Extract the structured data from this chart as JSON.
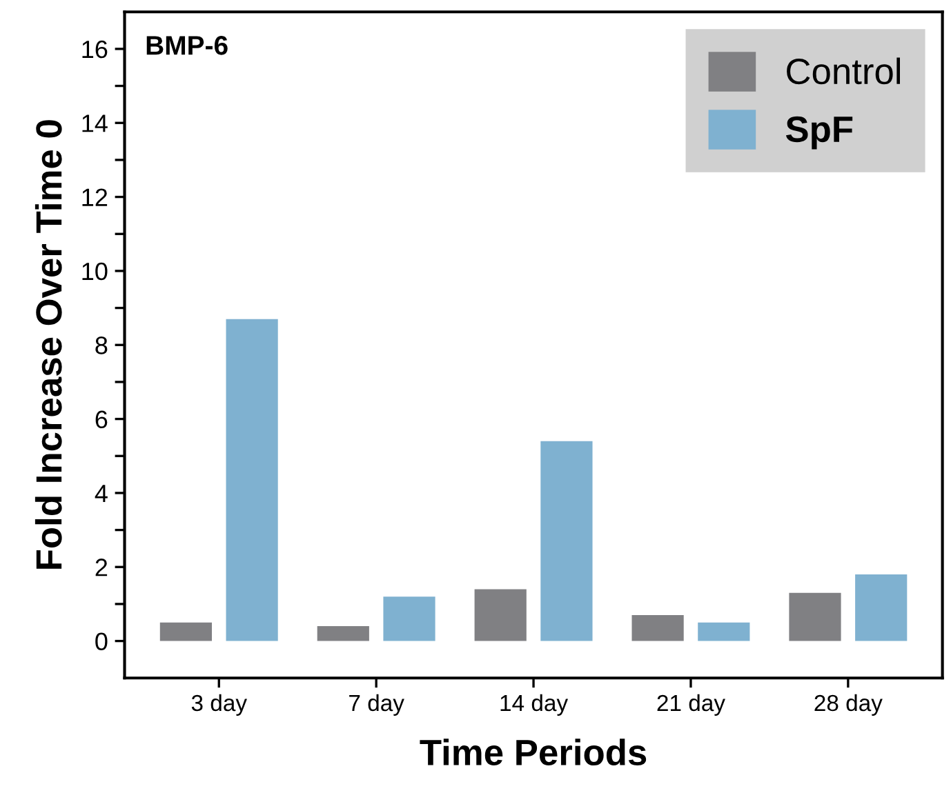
{
  "chart_data": {
    "type": "bar",
    "xlabel": "Time Periods",
    "ylabel": "Fold Increase Over Time 0",
    "annotations": [
      "BMP-6"
    ],
    "categories": [
      "3 day",
      "7 day",
      "14 day",
      "21 day",
      "28 day"
    ],
    "series": [
      {
        "name": "Control",
        "color": "#808083",
        "values": [
          0.5,
          0.4,
          1.4,
          0.7,
          1.3
        ]
      },
      {
        "name": "SpF",
        "color": "#7fb1d0",
        "values": [
          8.7,
          1.2,
          5.4,
          0.5,
          1.8
        ]
      }
    ],
    "ylim": [
      -1,
      17
    ],
    "yticks": [
      0,
      {
        "value": 1,
        "label": null
      },
      2,
      {
        "value": 3,
        "label": null
      },
      4,
      {
        "value": 5,
        "label": null
      },
      6,
      {
        "value": 7,
        "label": null
      },
      8,
      {
        "value": 9,
        "label": null
      },
      10,
      {
        "value": 11,
        "label": null
      },
      12,
      {
        "value": 13,
        "label": null
      },
      14,
      {
        "value": 15,
        "label": null
      },
      16
    ],
    "grid": false,
    "legend": "top right"
  }
}
